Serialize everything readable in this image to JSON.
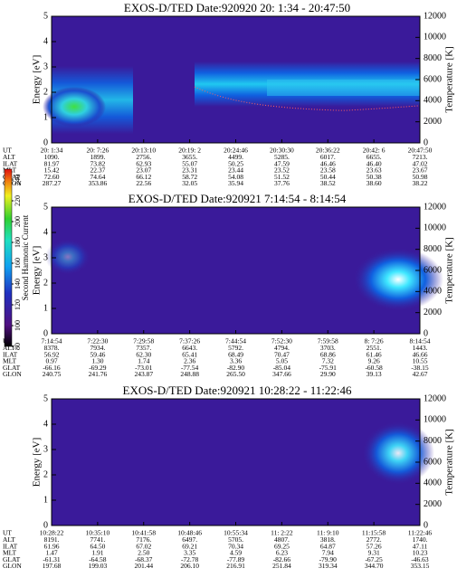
{
  "chart_data": [
    {
      "type": "heatmap",
      "title": "EXOS-D/TED    Date:920920  20: 1:34 - 20:47:50",
      "ylabel": "Energy [eV]",
      "y2label": "Temperature [K]",
      "ylim": [
        0,
        5
      ],
      "yticks": [
        0,
        1,
        2,
        3,
        4,
        5
      ],
      "y2lim": [
        0,
        12000
      ],
      "y2ticks": [
        0,
        2000,
        4000,
        6000,
        8000,
        10000,
        12000
      ],
      "ephemeris": {
        "labels": [
          "UT",
          "ALT",
          "ILAT",
          "MLT",
          "GLAT",
          "GLON"
        ],
        "rows": [
          [
            "20: 1:34",
            "20: 7:26",
            "20:13:10",
            "20:19: 2",
            "20:24:46",
            "20:30:30",
            "20:36:22",
            "20:42: 6",
            "20:47:50"
          ],
          [
            "1090.",
            "1899.",
            "2756.",
            "3655.",
            "4499.",
            "5285.",
            "6017.",
            "6655.",
            "7213."
          ],
          [
            "81.97",
            "73.82",
            "62.93",
            "55.07",
            "50.25",
            "47.59",
            "46.46",
            "46.40",
            "47.02"
          ],
          [
            "15.42",
            "22.37",
            "23.07",
            "23.31",
            "23.44",
            "23.52",
            "23.58",
            "23.63",
            "23.67"
          ],
          [
            "72.60",
            "74.64",
            "66.12",
            "58.72",
            "54.08",
            "51.52",
            "50.44",
            "50.38",
            "50.98"
          ],
          [
            "287.27",
            "353.86",
            "22.56",
            "32.05",
            "35.94",
            "37.76",
            "38.52",
            "38.60",
            "38.22"
          ]
        ]
      }
    },
    {
      "type": "heatmap",
      "title": "EXOS-D/TED    Date:920921  7:14:54 - 8:14:54",
      "ylabel": "Energy [eV]",
      "y2label": "Temperature [K]",
      "ylim": [
        0,
        5
      ],
      "yticks": [
        0,
        1,
        2,
        3,
        4,
        5
      ],
      "y2lim": [
        0,
        12000
      ],
      "y2ticks": [
        0,
        2000,
        4000,
        6000,
        8000,
        10000,
        12000
      ],
      "colorbar": {
        "label": "Second Harmonic Current",
        "zlim": [
          80,
          240
        ],
        "zticks": [
          80,
          100,
          120,
          140,
          160,
          180,
          200,
          220,
          240
        ]
      },
      "ephemeris": {
        "labels": [
          "UT",
          "ALT",
          "ILAT",
          "MLT",
          "GLAT",
          "GLON"
        ],
        "rows": [
          [
            "7:14:54",
            "7:22:30",
            "7:29:58",
            "7:37:26",
            "7:44:54",
            "7:52:30",
            "7:59:58",
            "8: 7:26",
            "8:14:54"
          ],
          [
            "8378.",
            "7934.",
            "7357.",
            "6643.",
            "5792.",
            "4794.",
            "3703.",
            "2551.",
            "1443."
          ],
          [
            "56.92",
            "59.46",
            "62.30",
            "65.41",
            "68.49",
            "70.47",
            "68.86",
            "61.46",
            "46.66"
          ],
          [
            "0.97",
            "1.30",
            "1.74",
            "2.36",
            "3.36",
            "5.05",
            "7.32",
            "9.26",
            "10.55"
          ],
          [
            "-66.16",
            "-69.29",
            "-73.01",
            "-77.54",
            "-82.90",
            "-85.04",
            "-75.91",
            "-60.58",
            "-38.15"
          ],
          [
            "240.75",
            "241.76",
            "243.87",
            "248.88",
            "265.50",
            "347.66",
            "29.90",
            "39.13",
            "42.67"
          ]
        ]
      }
    },
    {
      "type": "heatmap",
      "title": "EXOS-D/TED    Date:920921  10:28:22 - 11:22:46",
      "ylabel": "Energy [eV]",
      "y2label": "Temperature [K]",
      "ylim": [
        0,
        5
      ],
      "yticks": [
        0,
        1,
        2,
        3,
        4,
        5
      ],
      "y2lim": [
        0,
        12000
      ],
      "y2ticks": [
        0,
        2000,
        4000,
        6000,
        8000,
        10000,
        12000
      ],
      "ephemeris": {
        "labels": [
          "UT",
          "ALT",
          "ILAT",
          "MLT",
          "GLAT",
          "GLON"
        ],
        "rows": [
          [
            "10:28:22",
            "10:35:10",
            "10:41:58",
            "10:48:46",
            "10:55:34",
            "11: 2:22",
            "11: 9:10",
            "11:15:58",
            "11:22:46"
          ],
          [
            "8191.",
            "7741.",
            "7176.",
            "6497.",
            "5705.",
            "4807.",
            "3818.",
            "2772.",
            "1740."
          ],
          [
            "61.96",
            "64.50",
            "67.02",
            "69.21",
            "70.34",
            "69.25",
            "64.87",
            "57.26",
            "47.11"
          ],
          [
            "1.47",
            "1.91",
            "2.50",
            "3.35",
            "4.59",
            "6.23",
            "7.94",
            "9.31",
            "10.23"
          ],
          [
            "-61.31",
            "-64.58",
            "-68.37",
            "-72.78",
            "-77.89",
            "-82.66",
            "-79.90",
            "-67.25",
            "-46.63"
          ],
          [
            "197.68",
            "199.03",
            "201.44",
            "206.10",
            "216.91",
            "251.84",
            "319.34",
            "344.70",
            "353.15"
          ]
        ]
      }
    }
  ]
}
